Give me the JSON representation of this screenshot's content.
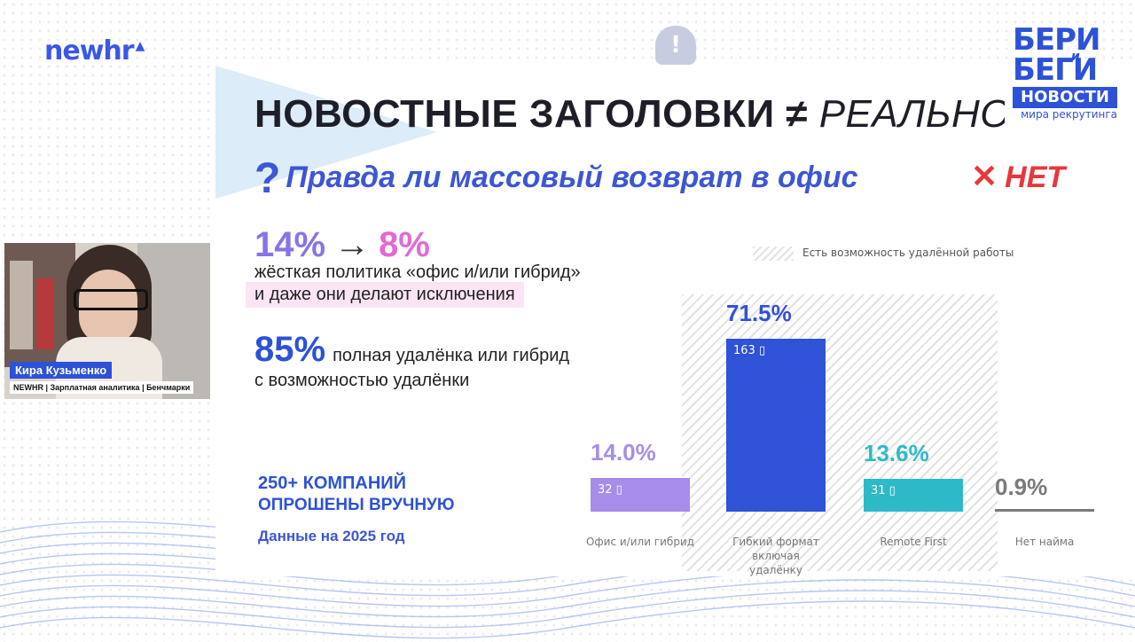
{
  "logo": {
    "newhr": "newhr"
  },
  "brand": {
    "line1": "БЕРИ",
    "small": "и",
    "line2": "БЕГИ",
    "line3": "НОВОСТИ",
    "line4": "мира рекрутинга"
  },
  "slide": {
    "title_bold": "НОВОСТНЫЕ ЗАГОЛОВКИ ≠",
    "title_italic": "РЕАЛЬНО",
    "question_mark": "?",
    "question": "Правда ли массовый возврат в офис",
    "answer_icon": "✕",
    "answer": "НЕТ",
    "stat1_from": "14%",
    "stat1_arrow": "→",
    "stat1_to": "8%",
    "stat1_desc": "жёсткая политика  «офис и/или гибрид»",
    "stat1_highlight": "и даже они делают исключения",
    "stat2_value": "85%",
    "stat2_line1": "полная удалёнка или гибрид",
    "stat2_line2": "с возможностью удалёнки",
    "companies_line1": "250+ КОМПАНИЙ",
    "companies_line2": "ОПРОШЕНЫ ВРУЧНУЮ",
    "companies_line3": "Данные на 2025 год"
  },
  "chart_data": {
    "type": "bar",
    "legend": "Есть возможность удалённой работы",
    "categories": [
      "Офис и/или гибрид",
      "Гибкий формат включая удалёнку",
      "Remote First",
      "Нет найма"
    ],
    "values": [
      14.0,
      71.5,
      13.6,
      0.9
    ],
    "labels": [
      "14.0%",
      "71.5%",
      "13.6%",
      "0.9%"
    ],
    "counts": [
      "32",
      "163",
      "31",
      ""
    ],
    "colors": [
      "#a78de9",
      "#2f52d6",
      "#2dbac8",
      "#7a7a7a"
    ]
  },
  "webcam": {
    "name": "Кира Кузьменко",
    "subtitle": "NEWHR | Зарплатная аналитика | Бенчмарки"
  }
}
